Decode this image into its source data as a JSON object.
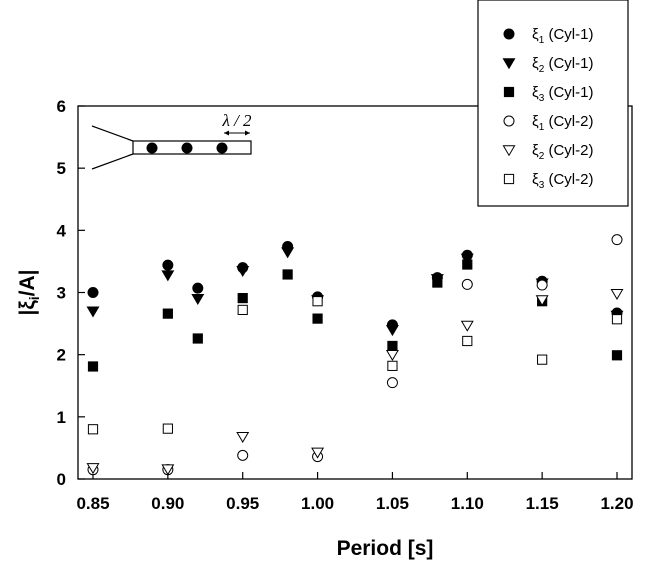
{
  "chart_data": {
    "type": "scatter",
    "xlabel": "Period [s]",
    "ylabel_main": "|ξ",
    "ylabel_sub": "i",
    "ylabel_tail": "/A|",
    "xlim": [
      0.85,
      1.2
    ],
    "ylim": [
      0,
      6
    ],
    "xticks": [
      "0.85",
      "0.90",
      "0.95",
      "1.00",
      "1.05",
      "1.10",
      "1.15",
      "1.20"
    ],
    "xtick_values": [
      0.85,
      0.9,
      0.95,
      1.0,
      1.05,
      1.1,
      1.15,
      1.2
    ],
    "yticks": [
      "0",
      "1",
      "2",
      "3",
      "4",
      "5",
      "6"
    ],
    "ytick_values": [
      0,
      1,
      2,
      3,
      4,
      5,
      6
    ],
    "grid": false,
    "legend_position": "top-right",
    "series": [
      {
        "name": "ξ1 (Cyl-1)",
        "sym": "ξ",
        "sub": "1",
        "tag": " (Cyl-1)",
        "marker": "circle-filled",
        "x": [
          0.85,
          0.9,
          0.92,
          0.95,
          0.98,
          1.0,
          1.05,
          1.08,
          1.1,
          1.15,
          1.2
        ],
        "y": [
          3.0,
          3.44,
          3.07,
          3.4,
          3.74,
          2.93,
          2.48,
          3.24,
          3.6,
          3.18,
          2.67
        ]
      },
      {
        "name": "ξ2 (Cyl-1)",
        "sym": "ξ",
        "sub": "2",
        "tag": " (Cyl-1)",
        "marker": "triangle-down-filled",
        "x": [
          0.85,
          0.9,
          0.92,
          0.95,
          0.98,
          1.0,
          1.05,
          1.08,
          1.1,
          1.15,
          1.2
        ],
        "y": [
          2.7,
          3.28,
          2.9,
          3.35,
          3.65,
          2.88,
          2.4,
          3.22,
          3.55,
          3.15,
          2.63
        ]
      },
      {
        "name": "ξ3 (Cyl-1)",
        "sym": "ξ",
        "sub": "3",
        "tag": " (Cyl-1)",
        "marker": "square-filled",
        "x": [
          0.85,
          0.9,
          0.92,
          0.95,
          0.98,
          1.0,
          1.05,
          1.08,
          1.1,
          1.15,
          1.2
        ],
        "y": [
          1.81,
          2.66,
          2.26,
          2.91,
          3.29,
          2.58,
          2.14,
          3.16,
          3.45,
          2.86,
          1.99
        ]
      },
      {
        "name": "ξ1 (Cyl-2)",
        "sym": "ξ",
        "sub": "1",
        "tag": " (Cyl-2)",
        "marker": "circle-open",
        "x": [
          0.85,
          0.9,
          0.95,
          1.0,
          1.05,
          1.1,
          1.15,
          1.2
        ],
        "y": [
          0.15,
          0.15,
          0.38,
          0.36,
          1.55,
          3.13,
          3.12,
          3.85
        ]
      },
      {
        "name": "ξ2 (Cyl-2)",
        "sym": "ξ",
        "sub": "2",
        "tag": " (Cyl-2)",
        "marker": "triangle-down-open",
        "x": [
          0.85,
          0.9,
          0.95,
          1.0,
          1.05,
          1.1,
          1.15,
          1.2
        ],
        "y": [
          0.18,
          0.16,
          0.68,
          0.43,
          2.0,
          2.47,
          2.88,
          2.98
        ]
      },
      {
        "name": "ξ3 (Cyl-2)",
        "sym": "ξ",
        "sub": "3",
        "tag": " (Cyl-2)",
        "marker": "square-open",
        "x": [
          0.85,
          0.9,
          0.95,
          1.0,
          1.05,
          1.1,
          1.15,
          1.2
        ],
        "y": [
          0.8,
          0.81,
          2.72,
          2.86,
          1.82,
          2.22,
          1.92,
          2.57
        ]
      }
    ],
    "inset": {
      "label": "λ / 2",
      "bodies": 3
    }
  }
}
